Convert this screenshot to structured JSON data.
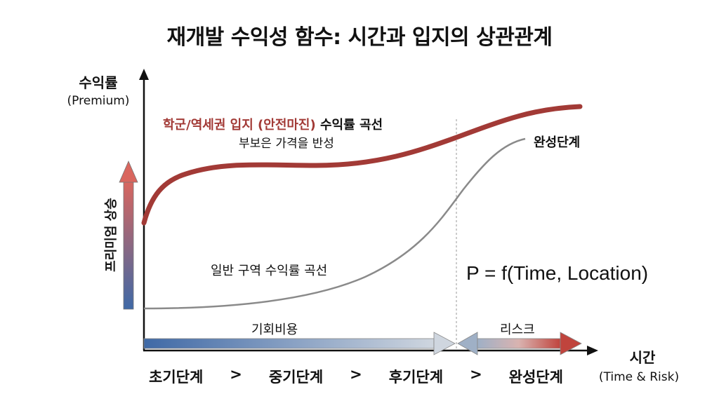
{
  "title": "재개발 수익성 함수: 시간과 입지의 상관관계",
  "y_axis": {
    "label": "수익률",
    "sublabel": "(Premium)"
  },
  "x_axis": {
    "label": "시간",
    "sublabel": "(Time & Risk)"
  },
  "premium_rise_label": "프리미엄 상승",
  "curves": {
    "premium": {
      "label_red": "학군/역세권 입지 (안전마진)",
      "label_rest": " 수익률 곡선",
      "sublabel": "부보은 가격을 반성",
      "color": "#a23a36"
    },
    "general": {
      "label": "일반 구역 수익률 곡선",
      "color": "#8a8a8a"
    }
  },
  "completion_label": "완성단계",
  "formula": "P = f(Time, Location)",
  "opportunity_cost": "기회비용",
  "risk": "리스크",
  "stages": [
    "초기단계",
    ">",
    "중기단계",
    ">",
    "후기단계",
    ">",
    "완성단계"
  ],
  "colors": {
    "blue": "#4a6fa5",
    "red": "#b5403b",
    "gray": "#9a9a9a"
  }
}
